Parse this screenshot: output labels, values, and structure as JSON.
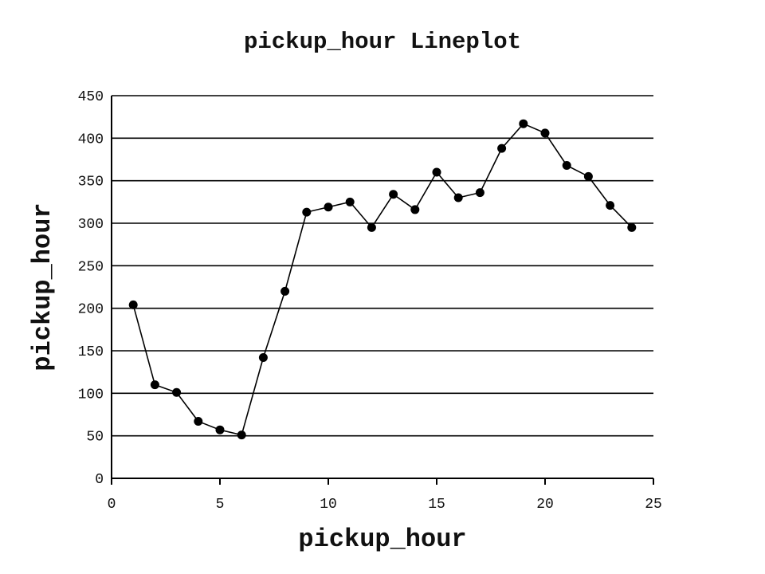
{
  "chart_data": {
    "type": "line",
    "title": "pickup_hour Lineplot",
    "xlabel": "pickup_hour",
    "ylabel": "pickup_hour",
    "xlim": [
      0,
      25
    ],
    "ylim": [
      0,
      450
    ],
    "x_ticks": [
      0,
      5,
      10,
      15,
      20,
      25
    ],
    "y_ticks": [
      0,
      50,
      100,
      150,
      200,
      250,
      300,
      350,
      400,
      450
    ],
    "grid": "horizontal",
    "line_color": "#000000",
    "marker": "circle",
    "series": [
      {
        "x": [
          1,
          2,
          3,
          4,
          5,
          6,
          7,
          8,
          9,
          10,
          11,
          12,
          13,
          14,
          15,
          16,
          17,
          18,
          19,
          20,
          21,
          22,
          23,
          24
        ],
        "values": [
          204,
          110,
          101,
          67,
          57,
          51,
          142,
          220,
          313,
          319,
          325,
          295,
          334,
          316,
          360,
          330,
          336,
          388,
          417,
          406,
          368,
          355,
          321,
          295
        ]
      }
    ]
  }
}
